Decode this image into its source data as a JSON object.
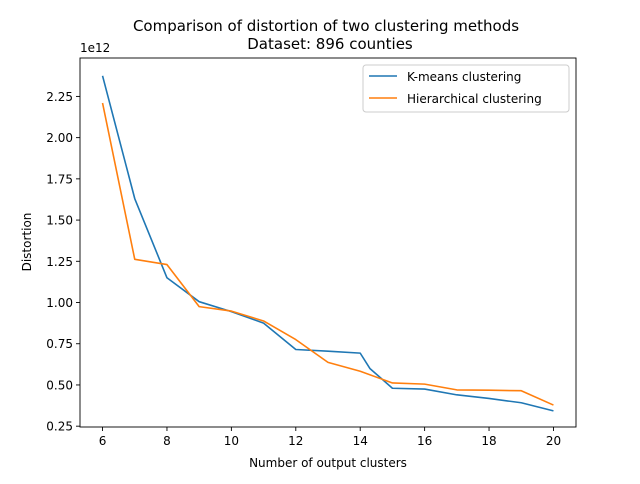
{
  "chart_data": {
    "type": "line",
    "title": [
      "Comparison of distortion of two clustering methods",
      "Dataset: 896 counties"
    ],
    "xlabel": "Number of output clusters",
    "ylabel": "Distortion",
    "y_offset_label": "1e12",
    "xlim": [
      5.3,
      20.7
    ],
    "ylim": [
      0.245,
      2.483
    ],
    "x_ticks": [
      6,
      8,
      10,
      12,
      14,
      16,
      18,
      20
    ],
    "x_tick_labels": [
      "6",
      "8",
      "10",
      "12",
      "14",
      "16",
      "18",
      "20"
    ],
    "y_ticks": [
      0.25,
      0.5,
      0.75,
      1.0,
      1.25,
      1.5,
      1.75,
      2.0,
      2.25
    ],
    "y_tick_labels": [
      "0.25",
      "0.50",
      "0.75",
      "1.00",
      "1.25",
      "1.50",
      "1.75",
      "2.00",
      "2.25"
    ],
    "grid": false,
    "legend_position": "top-right",
    "x": [
      6,
      7,
      8,
      9,
      10,
      11,
      12,
      13,
      14,
      14.3,
      15,
      16,
      17,
      18,
      19,
      20
    ],
    "series": [
      {
        "name": "K-means clustering",
        "color": "#1f77b4",
        "x": [
          6,
          7,
          8,
          9,
          10,
          11,
          12,
          13,
          14,
          14.3,
          15,
          16,
          17,
          18,
          19,
          20
        ],
        "values": [
          2.375,
          1.63,
          1.15,
          1.005,
          0.945,
          0.875,
          0.715,
          0.705,
          0.693,
          0.6,
          0.48,
          0.475,
          0.44,
          0.418,
          0.392,
          0.343
        ]
      },
      {
        "name": "Hierarchical clustering",
        "color": "#ff7f0e",
        "x": [
          6,
          7,
          8,
          9,
          10,
          11,
          12,
          13,
          14,
          15,
          16,
          17,
          18,
          19,
          20
        ],
        "values": [
          2.21,
          1.262,
          1.23,
          0.975,
          0.948,
          0.888,
          0.775,
          0.637,
          0.583,
          0.512,
          0.505,
          0.47,
          0.468,
          0.465,
          0.378
        ]
      }
    ]
  }
}
